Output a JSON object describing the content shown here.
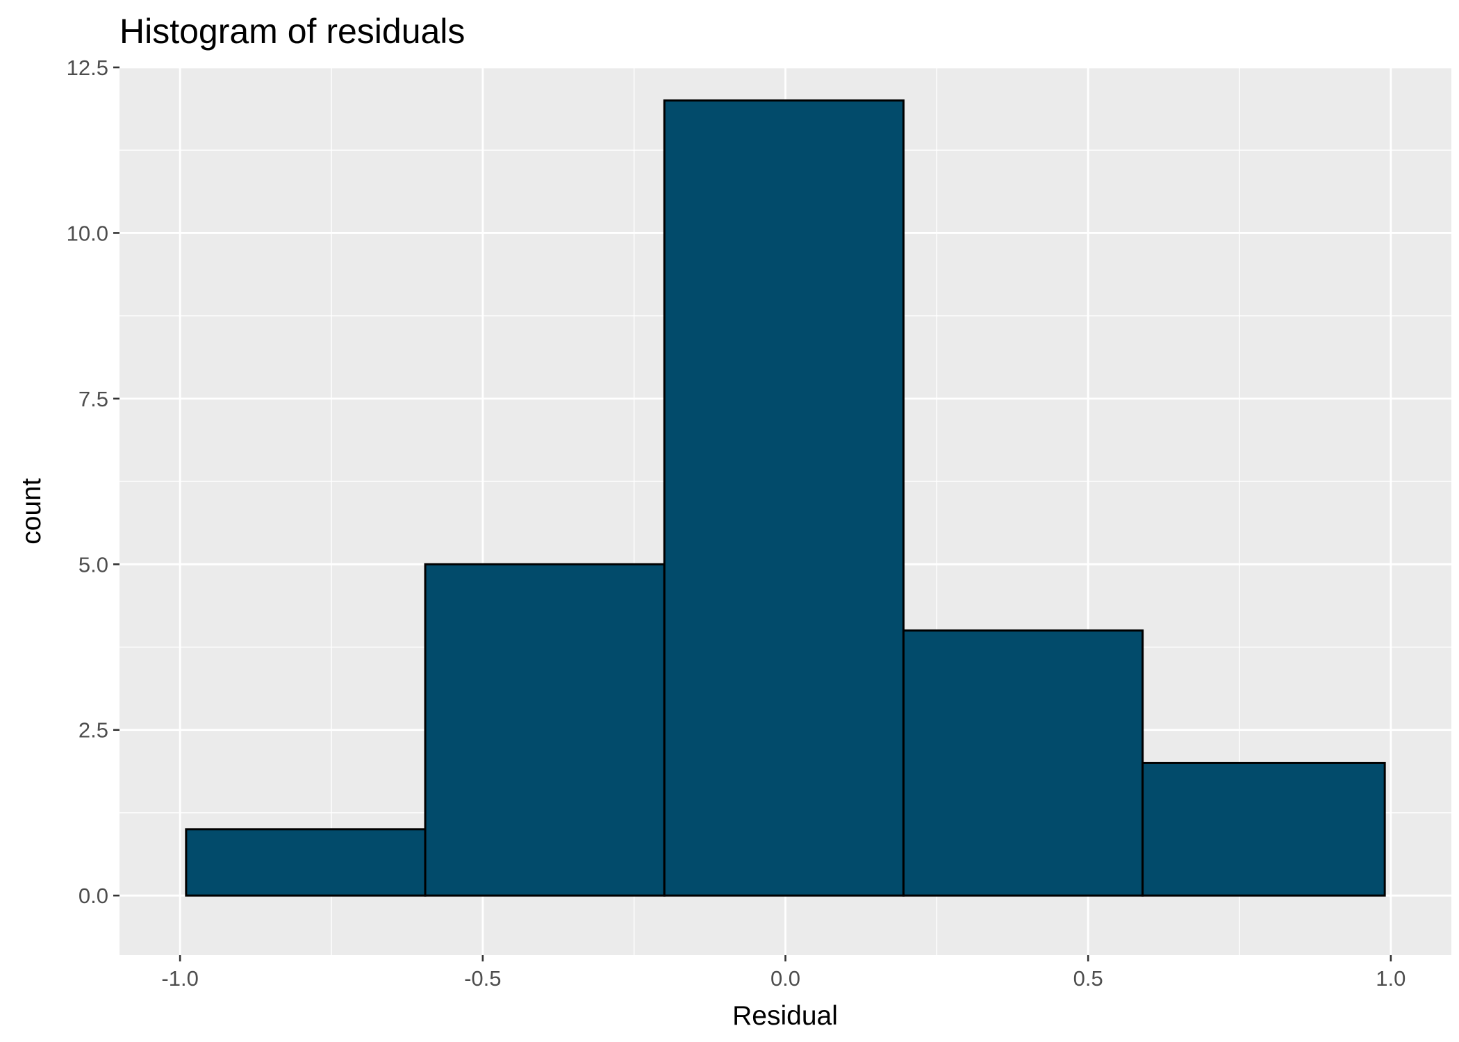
{
  "chart_data": {
    "type": "bar",
    "title": "Histogram of residuals",
    "xlabel": "Residual",
    "ylabel": "count",
    "xlim": [
      -1.1,
      1.1
    ],
    "ylim": [
      -0.9,
      12.5
    ],
    "x_ticks": [
      -1.0,
      -0.5,
      0.0,
      0.5,
      1.0
    ],
    "x_tick_labels": [
      "-1.0",
      "-0.5",
      "0.0",
      "0.5",
      "1.0"
    ],
    "y_ticks": [
      0.0,
      2.5,
      5.0,
      7.5,
      10.0,
      12.5
    ],
    "y_tick_labels": [
      "0.0",
      "2.5",
      "5.0",
      "7.5",
      "10.0",
      "12.5"
    ],
    "bins": [
      {
        "start": -0.99,
        "end": -0.595,
        "count": 1
      },
      {
        "start": -0.595,
        "end": -0.2,
        "count": 5
      },
      {
        "start": -0.2,
        "end": 0.195,
        "count": 12
      },
      {
        "start": 0.195,
        "end": 0.59,
        "count": 4
      },
      {
        "start": 0.59,
        "end": 0.99,
        "count": 2
      }
    ],
    "grid": true,
    "colors": {
      "bar_fill": "#024B6B",
      "bar_stroke": "#000000",
      "panel_bg": "#EBEBEB",
      "grid": "#FFFFFF"
    }
  }
}
